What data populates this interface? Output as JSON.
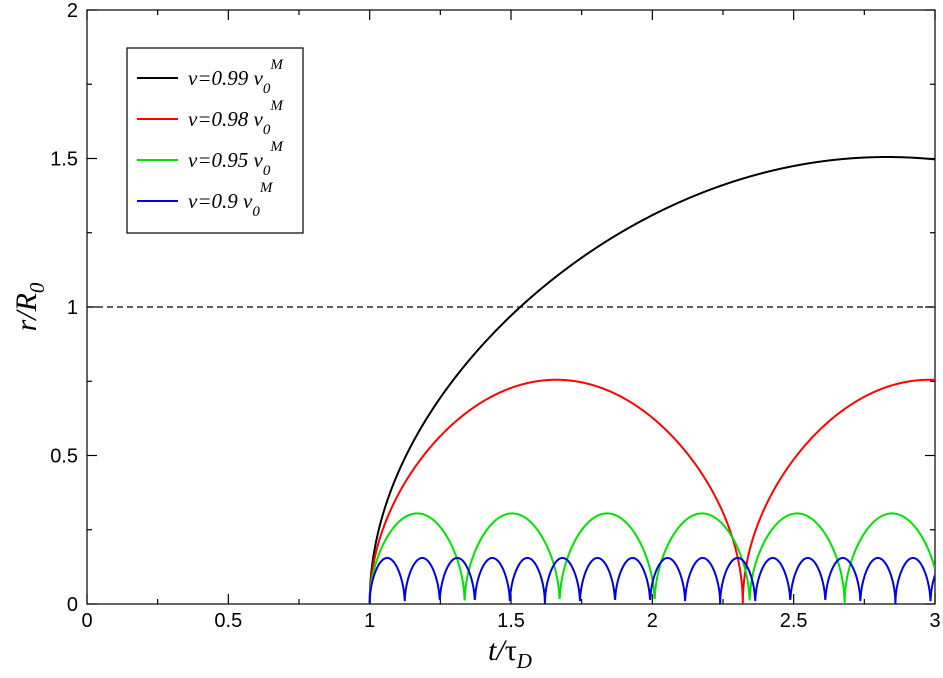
{
  "chart_data": {
    "type": "line",
    "xlabel": {
      "main": "t/",
      "greek": "τ",
      "sub": "D"
    },
    "ylabel": {
      "main": "r/R",
      "sub": "0"
    },
    "xlim": [
      0,
      3
    ],
    "ylim": [
      0,
      2
    ],
    "xticks": [
      "0",
      "0.5",
      "1",
      "1.5",
      "2",
      "2.5",
      "3"
    ],
    "yticks": [
      "0",
      "0.5",
      "1",
      "1.5",
      "2"
    ],
    "grid": false,
    "legend_position": "top-left",
    "reference_line": {
      "y": 1,
      "style": "dashed",
      "color": "#000000"
    },
    "series": [
      {
        "legend_main": "v=0.99 v",
        "legend_sub": "0",
        "legend_sup": "M",
        "color": "#000000",
        "start": 1.0,
        "peak_t": 2.83,
        "peak_r": 1.505,
        "arches": 1,
        "profile": "sqrt-sin"
      },
      {
        "legend_main": "v=0.98 v",
        "legend_sub": "0",
        "legend_sup": "M",
        "color": "#ff0000",
        "start": 1.0,
        "peak_t": 1.66,
        "peak_r": 0.755,
        "arches": 3,
        "profile": "sqrt-sin"
      },
      {
        "legend_main": "v=0.95 v",
        "legend_sub": "0",
        "legend_sup": "M",
        "color": "#00e000",
        "start": 1.0,
        "peak_t": 1.168,
        "peak_r": 0.305,
        "arches": 7,
        "profile": "sqrt-sin"
      },
      {
        "legend_main": "v=0.9 v",
        "legend_sub": "0",
        "legend_sup": "M",
        "color": "#0000dd",
        "start": 1.0,
        "peak_t": 1.062,
        "peak_r": 0.155,
        "arches": 17,
        "profile": "sqrt-sin"
      }
    ]
  }
}
